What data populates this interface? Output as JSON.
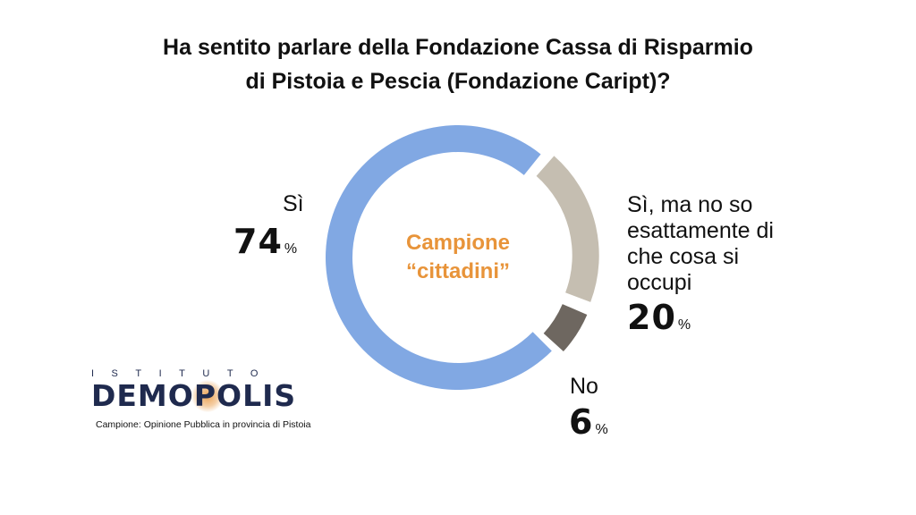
{
  "title": {
    "line1": "Ha sentito parlare della Fondazione Cassa di Risparmio",
    "line2": "di Pistoia e Pescia (Fondazione Caript)?"
  },
  "chart_data": {
    "type": "pie",
    "donut": true,
    "center_label": [
      "Campione",
      "“cittadini”"
    ],
    "categories": [
      "Sì",
      "Sì, ma no so esattamente di che cosa si occupi",
      "No"
    ],
    "values": [
      74,
      20,
      6
    ],
    "unit": "%",
    "colors": [
      "#81A8E3",
      "#C5BEB1",
      "#6E6760"
    ],
    "center_color": "#E8943A"
  },
  "labels": {
    "si": {
      "name": "Sì",
      "value": "74",
      "unit": "%"
    },
    "parziale": {
      "name_lines": [
        "Sì, ma no so",
        "esattamente di",
        "che cosa si",
        "occupi"
      ],
      "value": "20",
      "unit": "%"
    },
    "no": {
      "name": "No",
      "value": "6",
      "unit": "%"
    }
  },
  "logo": {
    "top": "ISTITUTO",
    "main": "DEMOPOLIS",
    "accent_color": "#E8943A",
    "brand_color": "#1F2A4E"
  },
  "footnote": "Campione: Opinione Pubblica in provincia di Pistoia"
}
